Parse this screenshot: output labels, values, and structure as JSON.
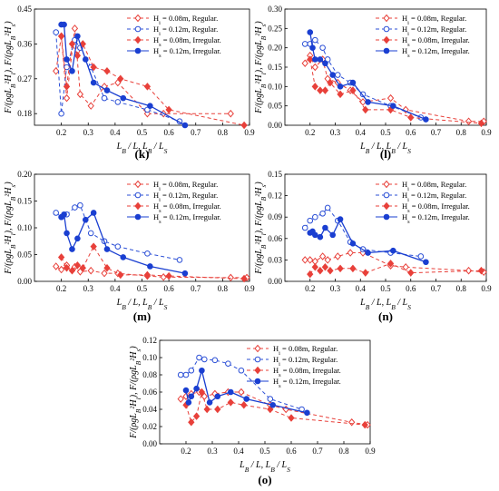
{
  "legend_labels": [
    "H_i = 0.08m, Regular.",
    "H_i = 0.12m, Regular.",
    "H_s = 0.08m, Irregular.",
    "H_s = 0.12m, Irregular."
  ],
  "series_styles": [
    {
      "color": "#e8403a",
      "dash": "4,3",
      "marker": "open-diamond"
    },
    {
      "color": "#2b4fd6",
      "dash": "4,3",
      "marker": "open-circle"
    },
    {
      "color": "#e8403a",
      "dash": "4,3",
      "marker": "filled-diamond"
    },
    {
      "color": "#1a3fd1",
      "dash": "",
      "marker": "filled-circle"
    }
  ],
  "chart_data": [
    {
      "type": "line",
      "panel_label": "(k)",
      "xlabel": "L_B / L, L_B / L_S",
      "ylabel": "F/(ρgL_B²H_i), F/(ρgL_B²H_s)",
      "xlim": [
        0.1,
        0.9
      ],
      "ylim": [
        0.15,
        0.45
      ],
      "xticks": [
        "0.2",
        "0.3",
        "0.4",
        "0.5",
        "0.6",
        "0.7",
        "0.8",
        "0.9"
      ],
      "yticks": [
        "0.18",
        "0.27",
        "0.36",
        "0.45"
      ],
      "series": [
        {
          "x": [
            0.18,
            0.2,
            0.22,
            0.25,
            0.27,
            0.31,
            0.36,
            0.41,
            0.52,
            0.58,
            0.83
          ],
          "y": [
            0.29,
            0.38,
            0.22,
            0.4,
            0.23,
            0.2,
            0.25,
            0.26,
            0.18,
            0.18,
            0.18
          ]
        },
        {
          "x": [
            0.18,
            0.2,
            0.22,
            0.25,
            0.27,
            0.31,
            0.36,
            0.41,
            0.52,
            0.64
          ],
          "y": [
            0.39,
            0.18,
            0.3,
            0.37,
            0.35,
            0.3,
            0.22,
            0.21,
            0.19,
            0.16
          ]
        },
        {
          "x": [
            0.2,
            0.22,
            0.24,
            0.26,
            0.28,
            0.32,
            0.37,
            0.42,
            0.52,
            0.6,
            0.88
          ],
          "y": [
            0.38,
            0.25,
            0.36,
            0.33,
            0.36,
            0.3,
            0.29,
            0.27,
            0.25,
            0.19,
            0.15
          ]
        },
        {
          "x": [
            0.2,
            0.21,
            0.22,
            0.24,
            0.26,
            0.29,
            0.32,
            0.37,
            0.43,
            0.53,
            0.66
          ],
          "y": [
            0.41,
            0.41,
            0.32,
            0.29,
            0.38,
            0.32,
            0.26,
            0.24,
            0.22,
            0.2,
            0.15
          ]
        }
      ]
    },
    {
      "type": "line",
      "panel_label": "(l)",
      "xlabel": "L_B / L, L_B / L_S",
      "ylabel": "F/(ρgL_B²H_i), F/(ρgL_B²H_s)",
      "xlim": [
        0.1,
        0.9
      ],
      "ylim": [
        0.0,
        0.3
      ],
      "xticks": [
        "0.2",
        "0.3",
        "0.4",
        "0.5",
        "0.6",
        "0.7",
        "0.8",
        "0.9"
      ],
      "yticks": [
        "0.00",
        "0.05",
        "0.10",
        "0.15",
        "0.20",
        "0.25",
        "0.30"
      ],
      "series": [
        {
          "x": [
            0.18,
            0.2,
            0.22,
            0.25,
            0.27,
            0.31,
            0.36,
            0.41,
            0.52,
            0.58,
            0.83,
            0.89
          ],
          "y": [
            0.16,
            0.18,
            0.15,
            0.17,
            0.12,
            0.11,
            0.09,
            0.06,
            0.07,
            0.04,
            0.01,
            0.01
          ]
        },
        {
          "x": [
            0.18,
            0.2,
            0.22,
            0.25,
            0.27,
            0.31,
            0.36,
            0.41,
            0.52,
            0.64
          ],
          "y": [
            0.21,
            0.21,
            0.22,
            0.2,
            0.17,
            0.13,
            0.11,
            0.08,
            0.05,
            0.02
          ]
        },
        {
          "x": [
            0.2,
            0.22,
            0.24,
            0.26,
            0.28,
            0.32,
            0.37,
            0.42,
            0.52,
            0.6,
            0.88
          ],
          "y": [
            0.17,
            0.1,
            0.09,
            0.09,
            0.11,
            0.08,
            0.09,
            0.04,
            0.04,
            0.02,
            0.005
          ]
        },
        {
          "x": [
            0.2,
            0.21,
            0.22,
            0.24,
            0.26,
            0.29,
            0.32,
            0.37,
            0.43,
            0.53,
            0.66
          ],
          "y": [
            0.24,
            0.2,
            0.17,
            0.17,
            0.16,
            0.13,
            0.1,
            0.11,
            0.06,
            0.05,
            0.015
          ]
        }
      ]
    },
    {
      "type": "line",
      "panel_label": "(m)",
      "xlabel": "L_B / L, L_B / L_S",
      "ylabel": "F/(ρgL_B²H_i), F/(ρgL_B²H_s)",
      "xlim": [
        0.1,
        0.9
      ],
      "ylim": [
        0.0,
        0.2
      ],
      "xticks": [
        "0.2",
        "0.3",
        "0.4",
        "0.5",
        "0.6",
        "0.7",
        "0.8",
        "0.9"
      ],
      "yticks": [
        "0.00",
        "0.05",
        "0.10",
        "0.15",
        "0.20"
      ],
      "series": [
        {
          "x": [
            0.18,
            0.2,
            0.22,
            0.25,
            0.27,
            0.31,
            0.36,
            0.41,
            0.52,
            0.58,
            0.83,
            0.89
          ],
          "y": [
            0.028,
            0.022,
            0.03,
            0.027,
            0.018,
            0.02,
            0.015,
            0.015,
            0.01,
            0.008,
            0.007,
            0.007
          ]
        },
        {
          "x": [
            0.18,
            0.2,
            0.22,
            0.25,
            0.27,
            0.31,
            0.36,
            0.41,
            0.52,
            0.64
          ],
          "y": [
            0.128,
            0.12,
            0.125,
            0.138,
            0.142,
            0.09,
            0.075,
            0.065,
            0.052,
            0.04
          ]
        },
        {
          "x": [
            0.2,
            0.22,
            0.24,
            0.26,
            0.28,
            0.32,
            0.37,
            0.42,
            0.52,
            0.6,
            0.88
          ],
          "y": [
            0.045,
            0.025,
            0.02,
            0.03,
            0.025,
            0.065,
            0.025,
            0.012,
            0.012,
            0.01,
            0.005
          ]
        },
        {
          "x": [
            0.2,
            0.21,
            0.22,
            0.24,
            0.26,
            0.29,
            0.32,
            0.37,
            0.43,
            0.53,
            0.66
          ],
          "y": [
            0.12,
            0.125,
            0.09,
            0.06,
            0.08,
            0.115,
            0.128,
            0.06,
            0.045,
            0.028,
            0.015
          ]
        }
      ]
    },
    {
      "type": "line",
      "panel_label": "(n)",
      "xlabel": "L_B / L, L_B / L_S",
      "ylabel": "F/(ρgL_B²H_i), F/(ρgL_B²H_s)",
      "xlim": [
        0.1,
        0.9
      ],
      "ylim": [
        0.0,
        0.15
      ],
      "xticks": [
        "0.2",
        "0.3",
        "0.4",
        "0.5",
        "0.6",
        "0.7",
        "0.8",
        "0.9"
      ],
      "yticks": [
        "0.00",
        "0.03",
        "0.06",
        "0.09",
        "0.12",
        "0.15"
      ],
      "series": [
        {
          "x": [
            0.18,
            0.2,
            0.22,
            0.25,
            0.27,
            0.31,
            0.36,
            0.41,
            0.52,
            0.58,
            0.83,
            0.89
          ],
          "y": [
            0.03,
            0.03,
            0.028,
            0.035,
            0.03,
            0.035,
            0.04,
            0.04,
            0.022,
            0.02,
            0.015,
            0.013
          ]
        },
        {
          "x": [
            0.18,
            0.2,
            0.22,
            0.25,
            0.27,
            0.31,
            0.36,
            0.41,
            0.52,
            0.64
          ],
          "y": [
            0.075,
            0.085,
            0.09,
            0.095,
            0.103,
            0.085,
            0.055,
            0.045,
            0.04,
            0.035
          ]
        },
        {
          "x": [
            0.2,
            0.22,
            0.24,
            0.26,
            0.28,
            0.32,
            0.37,
            0.42,
            0.52,
            0.6,
            0.88
          ],
          "y": [
            0.01,
            0.02,
            0.015,
            0.02,
            0.015,
            0.018,
            0.018,
            0.012,
            0.025,
            0.012,
            0.015
          ]
        },
        {
          "x": [
            0.2,
            0.21,
            0.22,
            0.24,
            0.26,
            0.29,
            0.32,
            0.37,
            0.43,
            0.53,
            0.66
          ],
          "y": [
            0.068,
            0.07,
            0.065,
            0.062,
            0.075,
            0.065,
            0.087,
            0.053,
            0.04,
            0.043,
            0.027
          ]
        }
      ]
    },
    {
      "type": "line",
      "panel_label": "(o)",
      "xlabel": "L_B / L, L_B / L_S",
      "ylabel": "F/(ρgL_B²H_i), F/(ρgL_B²H_s)",
      "xlim": [
        0.1,
        0.9
      ],
      "ylim": [
        0.0,
        0.12
      ],
      "xticks": [
        "0.2",
        "0.3",
        "0.4",
        "0.5",
        "0.6",
        "0.7",
        "0.8",
        "0.9"
      ],
      "yticks": [
        "0.00",
        "0.02",
        "0.04",
        "0.06",
        "0.08",
        "0.10",
        "0.12"
      ],
      "series": [
        {
          "x": [
            0.18,
            0.2,
            0.22,
            0.25,
            0.27,
            0.31,
            0.36,
            0.41,
            0.52,
            0.58,
            0.83,
            0.89
          ],
          "y": [
            0.052,
            0.055,
            0.058,
            0.06,
            0.055,
            0.058,
            0.06,
            0.06,
            0.045,
            0.04,
            0.025,
            0.022
          ]
        },
        {
          "x": [
            0.18,
            0.2,
            0.22,
            0.25,
            0.27,
            0.31,
            0.36,
            0.41,
            0.52,
            0.64
          ],
          "y": [
            0.08,
            0.08,
            0.085,
            0.1,
            0.098,
            0.097,
            0.093,
            0.085,
            0.052,
            0.04
          ]
        },
        {
          "x": [
            0.2,
            0.22,
            0.24,
            0.26,
            0.28,
            0.32,
            0.37,
            0.42,
            0.52,
            0.6,
            0.88
          ],
          "y": [
            0.045,
            0.025,
            0.032,
            0.06,
            0.04,
            0.04,
            0.048,
            0.045,
            0.04,
            0.03,
            0.022
          ]
        },
        {
          "x": [
            0.2,
            0.21,
            0.22,
            0.24,
            0.26,
            0.29,
            0.32,
            0.37,
            0.43,
            0.53,
            0.66
          ],
          "y": [
            0.062,
            0.048,
            0.055,
            0.064,
            0.085,
            0.048,
            0.055,
            0.06,
            0.052,
            0.045,
            0.036
          ]
        }
      ]
    }
  ]
}
